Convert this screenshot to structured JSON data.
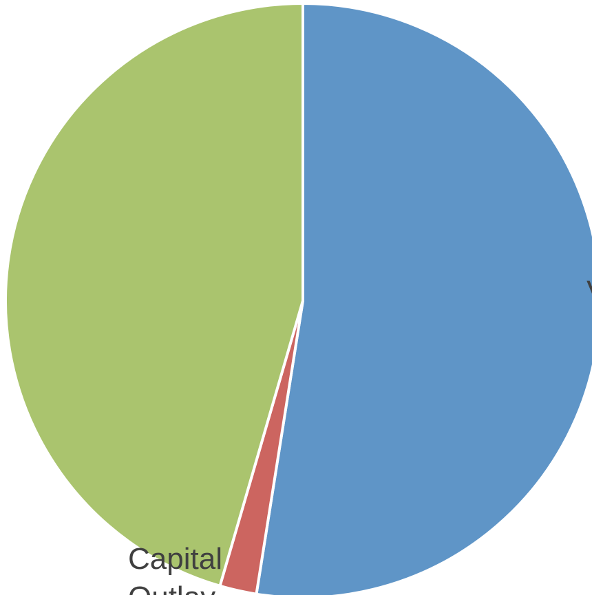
{
  "chart_data": {
    "type": "pie",
    "title": "",
    "start_angle_deg": 0,
    "direction": "clockwise",
    "colors": [
      "#5f95c7",
      "#cc6560",
      "#aac46e"
    ],
    "slices": [
      {
        "value": 52.5,
        "color": "#5f95c7",
        "label_lines": [
          "V"
        ]
      },
      {
        "value": 2.0,
        "color": "#cc6560",
        "label_lines": [
          "Capital",
          "Outlay"
        ]
      },
      {
        "value": 45.5,
        "color": "#aac46e",
        "label_lines": []
      }
    ],
    "legend": "none",
    "grid": false
  }
}
